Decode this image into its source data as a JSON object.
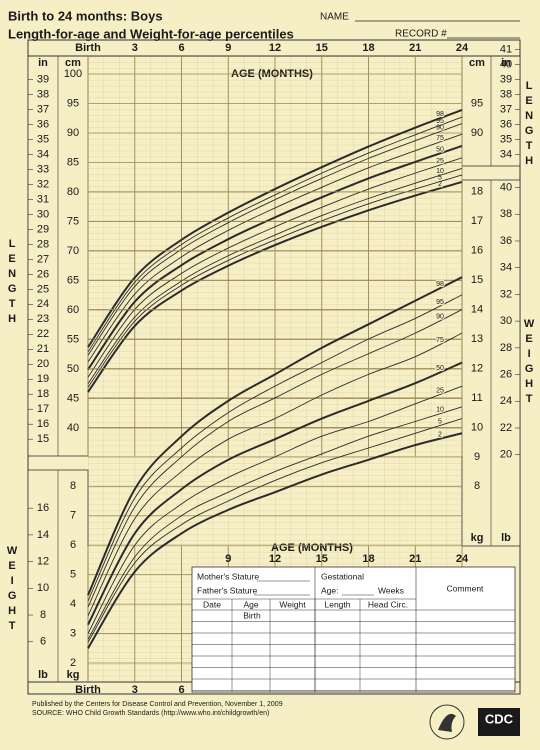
{
  "header": {
    "title": "Birth to 24 months: Boys",
    "subtitle": "Length-for-age and Weight-for-age percentiles",
    "name": "NAME",
    "record": "RECORD #"
  },
  "chart_data": [
    {
      "type": "line",
      "title": "Length-for-age",
      "xlabel": "AGE (MONTHS)",
      "y_unit": "cm",
      "y2_unit": "in",
      "side_label": "LENGTH",
      "x": [
        0,
        3,
        6,
        9,
        12,
        15,
        18,
        21,
        24
      ],
      "xlim": [
        0,
        24
      ],
      "xticks": [
        {
          "value": 0,
          "label": "Birth"
        },
        3,
        6,
        9,
        12,
        15,
        18,
        21,
        24
      ],
      "ylim": [
        37,
        105
      ],
      "yticks": [
        40,
        45,
        50,
        55,
        60,
        65,
        70,
        75,
        80,
        85,
        90,
        95,
        100
      ],
      "y2lim": [
        14.567,
        41.339
      ],
      "y2ticks": [
        15,
        16,
        17,
        18,
        19,
        20,
        21,
        22,
        23,
        24,
        25,
        26,
        27,
        28,
        29,
        30,
        31,
        32,
        33,
        34,
        35,
        36,
        37,
        38,
        39,
        40,
        41
      ],
      "series": [
        {
          "name": "2",
          "color": "#2b2b2b",
          "values": [
            46.1,
            57.3,
            63.3,
            67.5,
            71.0,
            74.1,
            76.9,
            79.4,
            81.7
          ]
        },
        {
          "name": "5",
          "color": "#2b2b2b",
          "values": [
            46.9,
            58.1,
            64.2,
            68.4,
            71.9,
            75.1,
            78.0,
            80.5,
            82.9
          ]
        },
        {
          "name": "10",
          "color": "#2b2b2b",
          "values": [
            47.5,
            58.8,
            64.9,
            69.2,
            72.7,
            76.0,
            78.9,
            81.5,
            84.0
          ]
        },
        {
          "name": "25",
          "color": "#2b2b2b",
          "values": [
            48.6,
            60.1,
            66.2,
            70.5,
            74.1,
            77.4,
            80.5,
            83.2,
            85.8
          ]
        },
        {
          "name": "50",
          "color": "#2b2b2b",
          "values": [
            49.9,
            61.4,
            67.6,
            72.0,
            75.7,
            79.1,
            82.3,
            85.1,
            87.8
          ]
        },
        {
          "name": "75",
          "color": "#2b2b2b",
          "values": [
            51.2,
            62.7,
            69.0,
            73.5,
            77.3,
            80.8,
            84.1,
            87.0,
            89.8
          ]
        },
        {
          "name": "90",
          "color": "#2b2b2b",
          "values": [
            52.3,
            64.0,
            70.3,
            74.8,
            78.7,
            82.3,
            85.7,
            88.7,
            91.6
          ]
        },
        {
          "name": "95",
          "color": "#2b2b2b",
          "values": [
            52.9,
            64.7,
            71.1,
            75.6,
            79.5,
            83.2,
            86.6,
            89.7,
            92.7
          ]
        },
        {
          "name": "98",
          "color": "#2b2b2b",
          "values": [
            53.7,
            65.5,
            71.9,
            76.5,
            80.5,
            84.2,
            87.7,
            90.9,
            93.9
          ]
        }
      ]
    },
    {
      "type": "line",
      "title": "Weight-for-age",
      "xlabel": "AGE (MONTHS)",
      "y_unit": "kg",
      "y2_unit": "lb",
      "side_label": "WEIGHT",
      "x": [
        0,
        3,
        6,
        9,
        12,
        15,
        18,
        21,
        24
      ],
      "xlim": [
        0,
        24
      ],
      "xticks": [
        {
          "value": 0,
          "label": "Birth"
        },
        3,
        6,
        9,
        12,
        15,
        18,
        21,
        24
      ],
      "ylim": [
        1.6,
        18.8
      ],
      "yticks": [
        2,
        3,
        4,
        5,
        6,
        7,
        8,
        9,
        10,
        11,
        12,
        13,
        14,
        15,
        16,
        17,
        18
      ],
      "y2lim": [
        3.527,
        41.447
      ],
      "y2ticks": [
        6,
        8,
        10,
        12,
        14,
        16,
        20,
        22,
        24,
        26,
        28,
        30,
        32,
        34,
        36,
        38,
        40
      ],
      "series": [
        {
          "name": "2",
          "color": "#2b2b2b",
          "values": [
            2.5,
            5.1,
            6.4,
            7.2,
            7.8,
            8.4,
            8.9,
            9.4,
            9.8
          ]
        },
        {
          "name": "5",
          "color": "#2b2b2b",
          "values": [
            2.7,
            5.4,
            6.7,
            7.5,
            8.2,
            8.8,
            9.3,
            9.8,
            10.3
          ]
        },
        {
          "name": "10",
          "color": "#2b2b2b",
          "values": [
            2.8,
            5.6,
            7.0,
            7.8,
            8.5,
            9.1,
            9.7,
            10.2,
            10.7
          ]
        },
        {
          "name": "25",
          "color": "#2b2b2b",
          "values": [
            3.0,
            6.0,
            7.4,
            8.3,
            9.0,
            9.7,
            10.2,
            10.8,
            11.4
          ]
        },
        {
          "name": "50",
          "color": "#2b2b2b",
          "values": [
            3.3,
            6.4,
            7.9,
            8.9,
            9.6,
            10.3,
            10.9,
            11.5,
            12.2
          ]
        },
        {
          "name": "75",
          "color": "#2b2b2b",
          "values": [
            3.6,
            6.9,
            8.5,
            9.6,
            10.3,
            11.1,
            11.8,
            12.4,
            13.2
          ]
        },
        {
          "name": "90",
          "color": "#2b2b2b",
          "values": [
            3.9,
            7.3,
            9.0,
            10.2,
            11.0,
            11.8,
            12.5,
            13.2,
            14.0
          ]
        },
        {
          "name": "95",
          "color": "#2b2b2b",
          "values": [
            4.1,
            7.6,
            9.3,
            10.5,
            11.4,
            12.2,
            13.0,
            13.7,
            14.5
          ]
        },
        {
          "name": "98",
          "color": "#2b2b2b",
          "values": [
            4.3,
            7.9,
            9.7,
            10.9,
            11.8,
            12.7,
            13.5,
            14.3,
            15.1
          ]
        }
      ]
    }
  ],
  "form": {
    "mother_stature": "Mother's Stature",
    "father_stature": "Father's Stature",
    "gestational": "Gestational",
    "age": "Age:",
    "weeks": "Weeks",
    "comment": "Comment",
    "columns": [
      "Date",
      "Age",
      "Weight",
      "Length",
      "Head Circ."
    ],
    "first_age": "Birth"
  },
  "footer": {
    "published": "Published by the Centers for Disease Control and Prevention, November 1, 2009",
    "source": "SOURCE:  WHO Child Growth Standards (http://www.who.int/childgrowth/en)",
    "logo": "CDC"
  }
}
